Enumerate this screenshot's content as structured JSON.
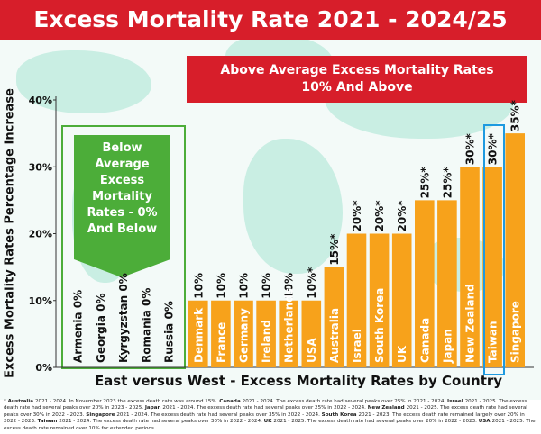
{
  "chart_data": {
    "type": "bar",
    "title": "Excess Mortality Rate 2021 - 2024/25",
    "xlabel": "East versus West - Excess Mortality Rates by Country",
    "ylabel": "Excess Mortality Rates Percentage Increase",
    "ylim": [
      0,
      40
    ],
    "yticks": [
      "0%",
      "10%",
      "20%",
      "30%",
      "40%"
    ],
    "yticks_values": [
      0,
      10,
      20,
      30,
      40
    ],
    "grid": false,
    "bars": [
      {
        "country": "Armenia",
        "value": 0,
        "label": "0%"
      },
      {
        "country": "Georgia",
        "value": 0,
        "label": "0%"
      },
      {
        "country": "Kyrgyzstan",
        "value": 0,
        "label": "0%"
      },
      {
        "country": "Romania",
        "value": 0,
        "label": "0%"
      },
      {
        "country": "Russia",
        "value": 0,
        "label": "0%"
      },
      {
        "country": "Denmark",
        "value": 10,
        "label": "10%"
      },
      {
        "country": "France",
        "value": 10,
        "label": "10%"
      },
      {
        "country": "Germany",
        "value": 10,
        "label": "10%"
      },
      {
        "country": "Ireland",
        "value": 10,
        "label": "10%"
      },
      {
        "country": "Netherlands",
        "value": 10,
        "label": "10%"
      },
      {
        "country": "USA",
        "value": 10,
        "label": "10%*"
      },
      {
        "country": "Australia",
        "value": 15,
        "label": "15%*"
      },
      {
        "country": "Israel",
        "value": 20,
        "label": "20%*"
      },
      {
        "country": "South Korea",
        "value": 20,
        "label": "20%*"
      },
      {
        "country": "UK",
        "value": 20,
        "label": "20%*"
      },
      {
        "country": "Canada",
        "value": 25,
        "label": "25%*"
      },
      {
        "country": "Japan",
        "value": 25,
        "label": "25%*"
      },
      {
        "country": "New Zealand",
        "value": 30,
        "label": "30%*"
      },
      {
        "country": "Taiwan",
        "value": 30,
        "label": "30%*"
      },
      {
        "country": "Singapore",
        "value": 35,
        "label": "35%*"
      }
    ],
    "colors": {
      "bar": "#f7a21b",
      "below": "#4cad39",
      "above": "#d71e2a",
      "highlight": "#1e9ae0",
      "title_bg": "#d71e2a"
    }
  },
  "annotations": {
    "above_banner_line1": "Above Average Excess Mortality Rates",
    "above_banner_line2": "10% And Above",
    "below_line1": "Below",
    "below_line2": "Average",
    "below_line3": "Excess",
    "below_line4": "Mortality",
    "below_line5": "Rates - 0%",
    "below_line6": "And Below"
  },
  "footnotes": [
    {
      "name": "Australia",
      "text": "2021 - 2024. In November 2023 the excess death rate was around 15%."
    },
    {
      "name": "Canada",
      "text": "2021 - 2024. The excess death rate had several peaks over 25% in 2021 - 2024."
    },
    {
      "name": "Israel",
      "text": "2021 - 2025. The excess death rate had several peaks over 20% in 2023 - 2025."
    },
    {
      "name": "Japan",
      "text": "2021 - 2024. The excess death rate had several peaks over 25% in 2022 - 2024."
    },
    {
      "name": "New Zealand",
      "text": "2021 - 2025. The excess death rate had several peaks over 30% in 2022 - 2023."
    },
    {
      "name": "Singapore",
      "text": "2021 - 2024. The excess death rate had several peaks over 35% in 2022 - 2024."
    },
    {
      "name": "South Korea",
      "text": "2021 - 2023. The excess death rate remained largely over 20% in 2022 - 2023."
    },
    {
      "name": "Taiwan",
      "text": "2021 - 2024. The excess death rate had several peaks over 30% in 2022 - 2024."
    },
    {
      "name": "UK",
      "text": "2021 - 2025. The excess death rate had several peaks over 20% in 2022 - 2023."
    },
    {
      "name": "USA",
      "text": "2021 - 2025. The excess death rate remained over 10% for extended periods."
    }
  ]
}
